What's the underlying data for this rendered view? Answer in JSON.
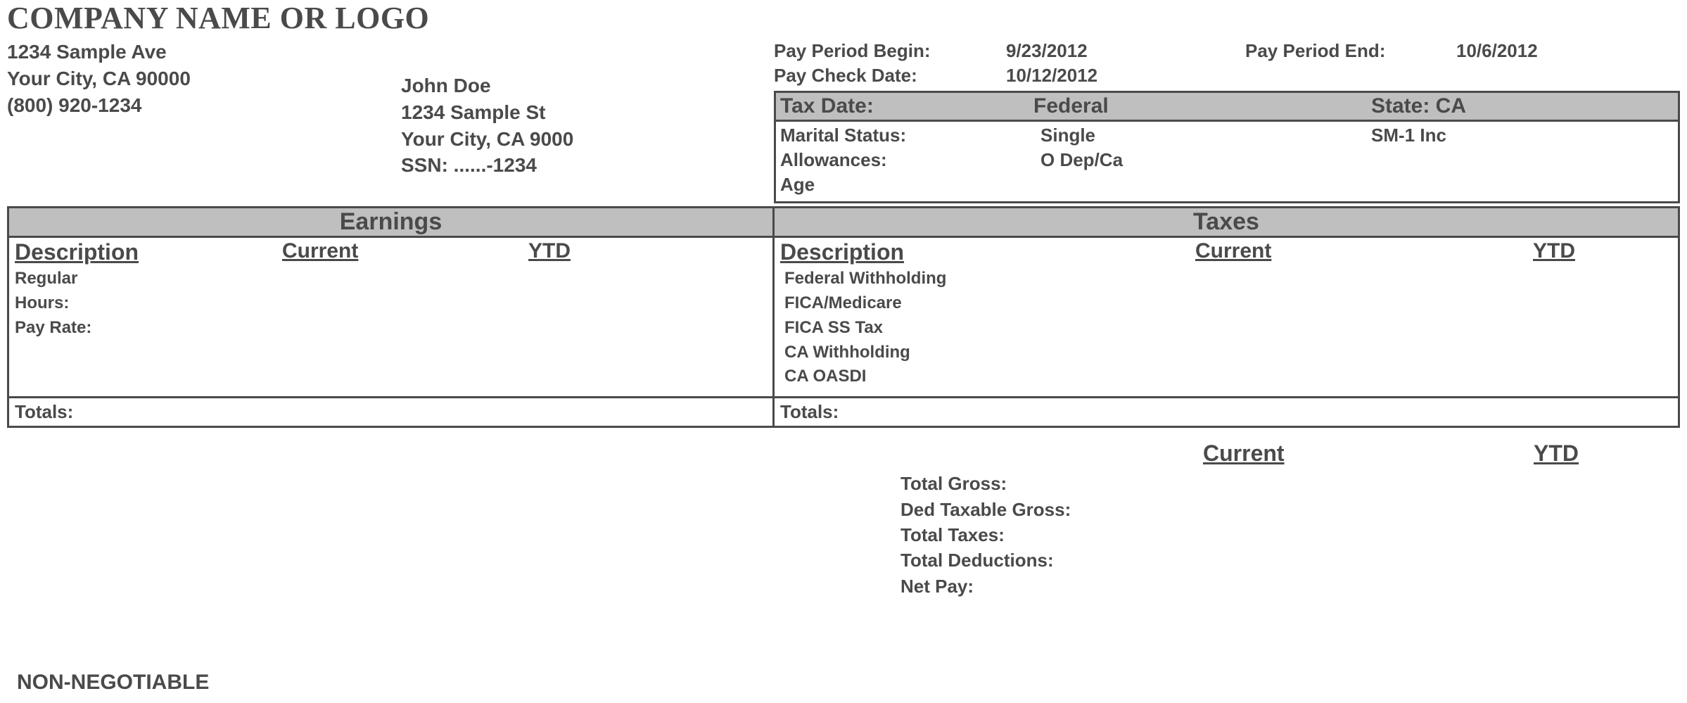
{
  "company": {
    "name": "COMPANY NAME OR LOGO",
    "address1": "1234 Sample Ave",
    "address2": "Your City, CA 90000",
    "phone": "(800) 920-1234"
  },
  "employee": {
    "name": "John Doe",
    "address1": "1234 Sample St",
    "address2": "Your City, CA 9000",
    "ssn_label": "SSN: ......-1234"
  },
  "period": {
    "begin_label": "Pay Period Begin:",
    "begin_value": "9/23/2012",
    "end_label": "Pay Period End:",
    "end_value": "10/6/2012",
    "check_label": "Pay Check Date:",
    "check_value": "10/12/2012"
  },
  "tax_header": {
    "tax_date_label": "Tax Date:",
    "federal_label": "Federal",
    "state_label": "State: CA"
  },
  "tax_details": {
    "marital_label": "Marital Status:",
    "marital_value": "Single",
    "company_info": "SM-1 Inc",
    "allowances_label": "Allowances:",
    "allowances_value": "O Dep/Ca",
    "age_label": "Age"
  },
  "earnings": {
    "section": "Earnings",
    "desc_header": "Description",
    "current_header": "Current",
    "ytd_header": "YTD",
    "rows": {
      "regular": "Regular",
      "hours": "Hours:",
      "payrate": "Pay Rate:"
    },
    "totals_label": "Totals:"
  },
  "taxes": {
    "section": "Taxes",
    "desc_header": "Description",
    "current_header": "Current",
    "ytd_header": "YTD",
    "rows": {
      "federal": "Federal Withholding",
      "fica_med": "FICA/Medicare",
      "fica_ss": "FICA SS Tax",
      "ca_with": "CA Withholding",
      "ca_oasdi": "CA OASDI"
    },
    "totals_label": "Totals:"
  },
  "summary": {
    "current_header": "Current",
    "ytd_header": "YTD",
    "total_gross": "Total Gross:",
    "ded_taxable": "Ded Taxable Gross:",
    "total_taxes": "Total Taxes:",
    "total_deductions": "Total Deductions:",
    "net_pay": "Net Pay:"
  },
  "footer": {
    "non_negotiable": "NON-NEGOTIABLE"
  },
  "colors": {
    "header_bg": "#bfbfbf",
    "border": "#4a4a4a",
    "text": "#4a4a4a"
  }
}
